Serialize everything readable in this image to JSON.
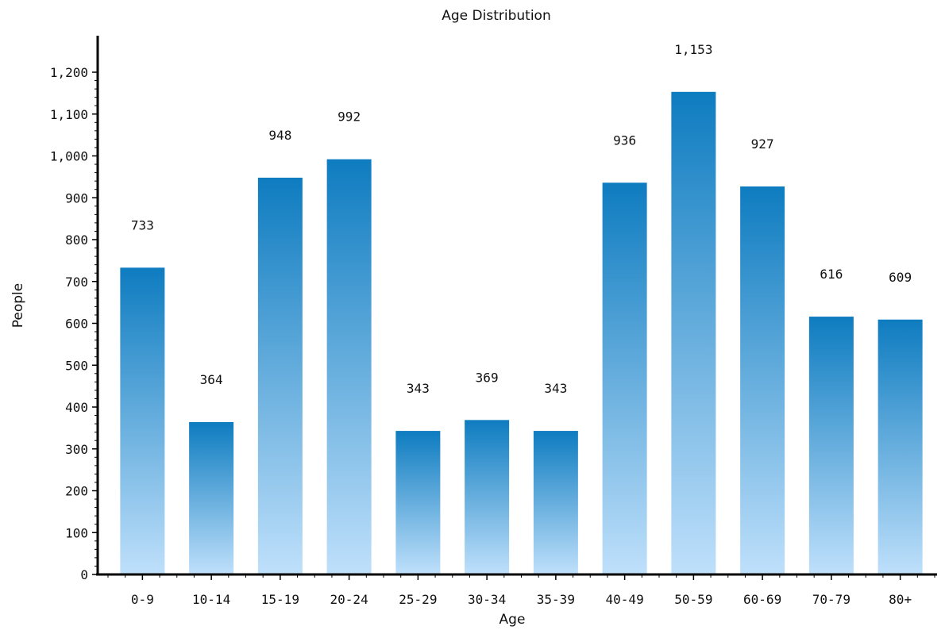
{
  "chart_data": {
    "type": "bar",
    "title": "Age Distribution",
    "xlabel": "Age",
    "ylabel": "People",
    "categories": [
      "0-9",
      "10-14",
      "15-19",
      "20-24",
      "25-29",
      "30-34",
      "35-39",
      "40-49",
      "50-59",
      "60-69",
      "70-79",
      "80+"
    ],
    "values": [
      733,
      364,
      948,
      992,
      343,
      369,
      343,
      936,
      1153,
      927,
      616,
      609
    ],
    "value_labels": [
      "733",
      "364",
      "948",
      "992",
      "343",
      "369",
      "343",
      "936",
      "1,153",
      "927",
      "616",
      "609"
    ],
    "ylim": [
      0,
      1200
    ],
    "yticks": [
      0,
      100,
      200,
      300,
      400,
      500,
      600,
      700,
      800,
      900,
      1000,
      1100,
      1200
    ],
    "ytick_labels": [
      "0",
      "100",
      "200",
      "300",
      "400",
      "500",
      "600",
      "700",
      "800",
      "900",
      "1,000",
      "1,100",
      "1,200"
    ],
    "grid": false,
    "legend": false,
    "colors": {
      "bar_top": "#0e7cc0",
      "bar_bottom": "#bfe0fb",
      "axis": "#000000"
    }
  }
}
